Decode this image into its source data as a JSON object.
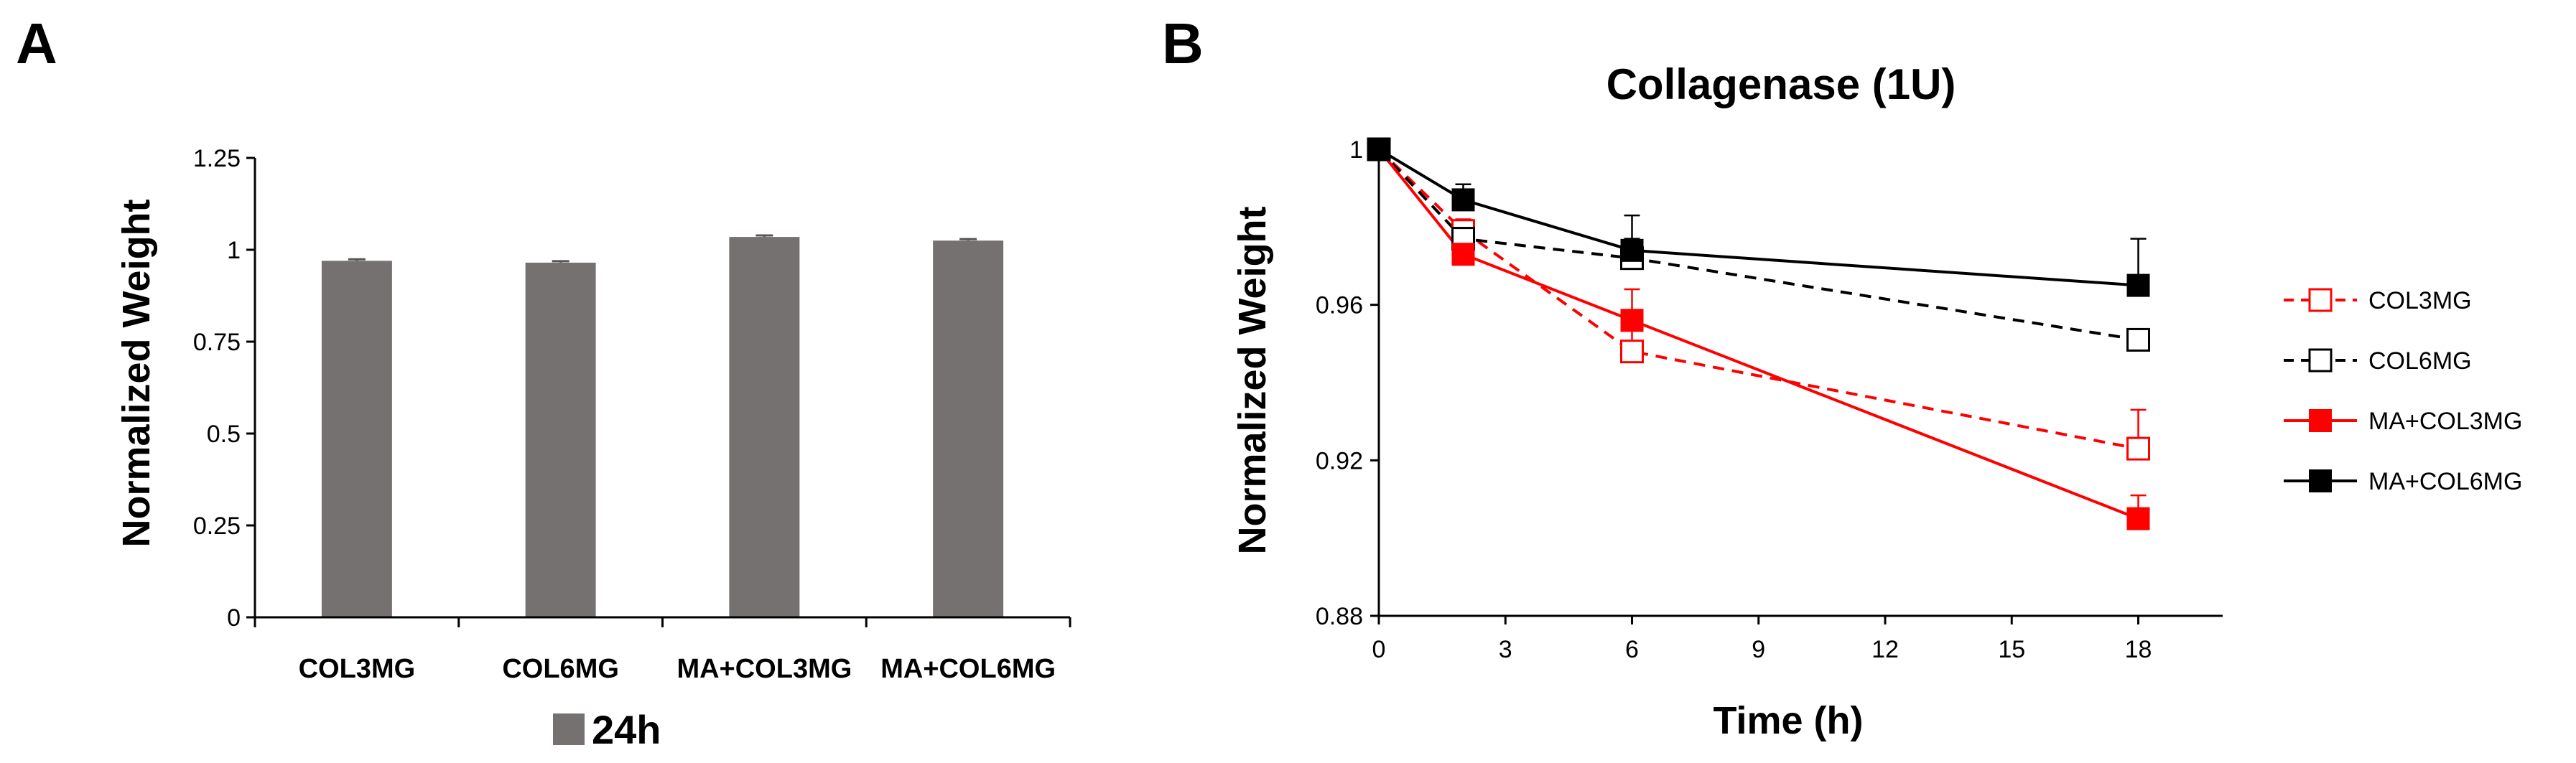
{
  "panels": {
    "a_letter": "A",
    "b_letter": "B"
  },
  "chart_data": [
    {
      "type": "bar",
      "panel": "A",
      "title": "",
      "xlabel": "",
      "ylabel": "Normalized Weight",
      "ylim": [
        0,
        1.25
      ],
      "yticks": [
        "0",
        "0.25",
        "0.5",
        "0.75",
        "1",
        "1.25"
      ],
      "categories": [
        "COL3MG",
        "COL6MG",
        "MA+COL3MG",
        "MA+COL6MG"
      ],
      "series": [
        {
          "name": "24h",
          "color": "#767171",
          "values": [
            0.97,
            0.965,
            1.035,
            1.025
          ],
          "errors": [
            0.004,
            0.004,
            0.004,
            0.004
          ]
        }
      ],
      "legend_position": "bottom-center",
      "grid": false
    },
    {
      "type": "line",
      "panel": "B",
      "title": "Collagenase (1U)",
      "xlabel": "Time (h)",
      "ylabel": "Normalized Weight",
      "xlim": [
        0,
        20
      ],
      "ylim": [
        0.88,
        1.0
      ],
      "xticks": [
        "0",
        "3",
        "6",
        "9",
        "12",
        "15",
        "18"
      ],
      "yticks": [
        "0.88",
        "0.92",
        "0.96",
        "1"
      ],
      "x": [
        0,
        2,
        6,
        18
      ],
      "series": [
        {
          "name": "COL3MG",
          "color": "#ff0000",
          "line": "dashed",
          "marker": "open-square",
          "values": [
            1.0,
            0.979,
            0.948,
            0.923
          ],
          "errors": [
            0,
            0.003,
            0.009,
            0.01
          ]
        },
        {
          "name": "COL6MG",
          "color": "#000000",
          "line": "dashed",
          "marker": "open-square",
          "values": [
            1.0,
            0.977,
            0.972,
            0.951
          ],
          "errors": [
            0,
            0.003,
            0.005,
            0.002
          ]
        },
        {
          "name": "MA+COL3MG",
          "color": "#ff0000",
          "line": "solid",
          "marker": "filled-square",
          "values": [
            1.0,
            0.973,
            0.956,
            0.905
          ],
          "errors": [
            0,
            0.002,
            0.008,
            0.006
          ]
        },
        {
          "name": "MA+COL6MG",
          "color": "#000000",
          "line": "solid",
          "marker": "filled-square",
          "values": [
            1.0,
            0.987,
            0.974,
            0.965
          ],
          "errors": [
            0,
            0.004,
            0.009,
            0.012
          ]
        }
      ],
      "legend_position": "right",
      "grid": false
    }
  ]
}
